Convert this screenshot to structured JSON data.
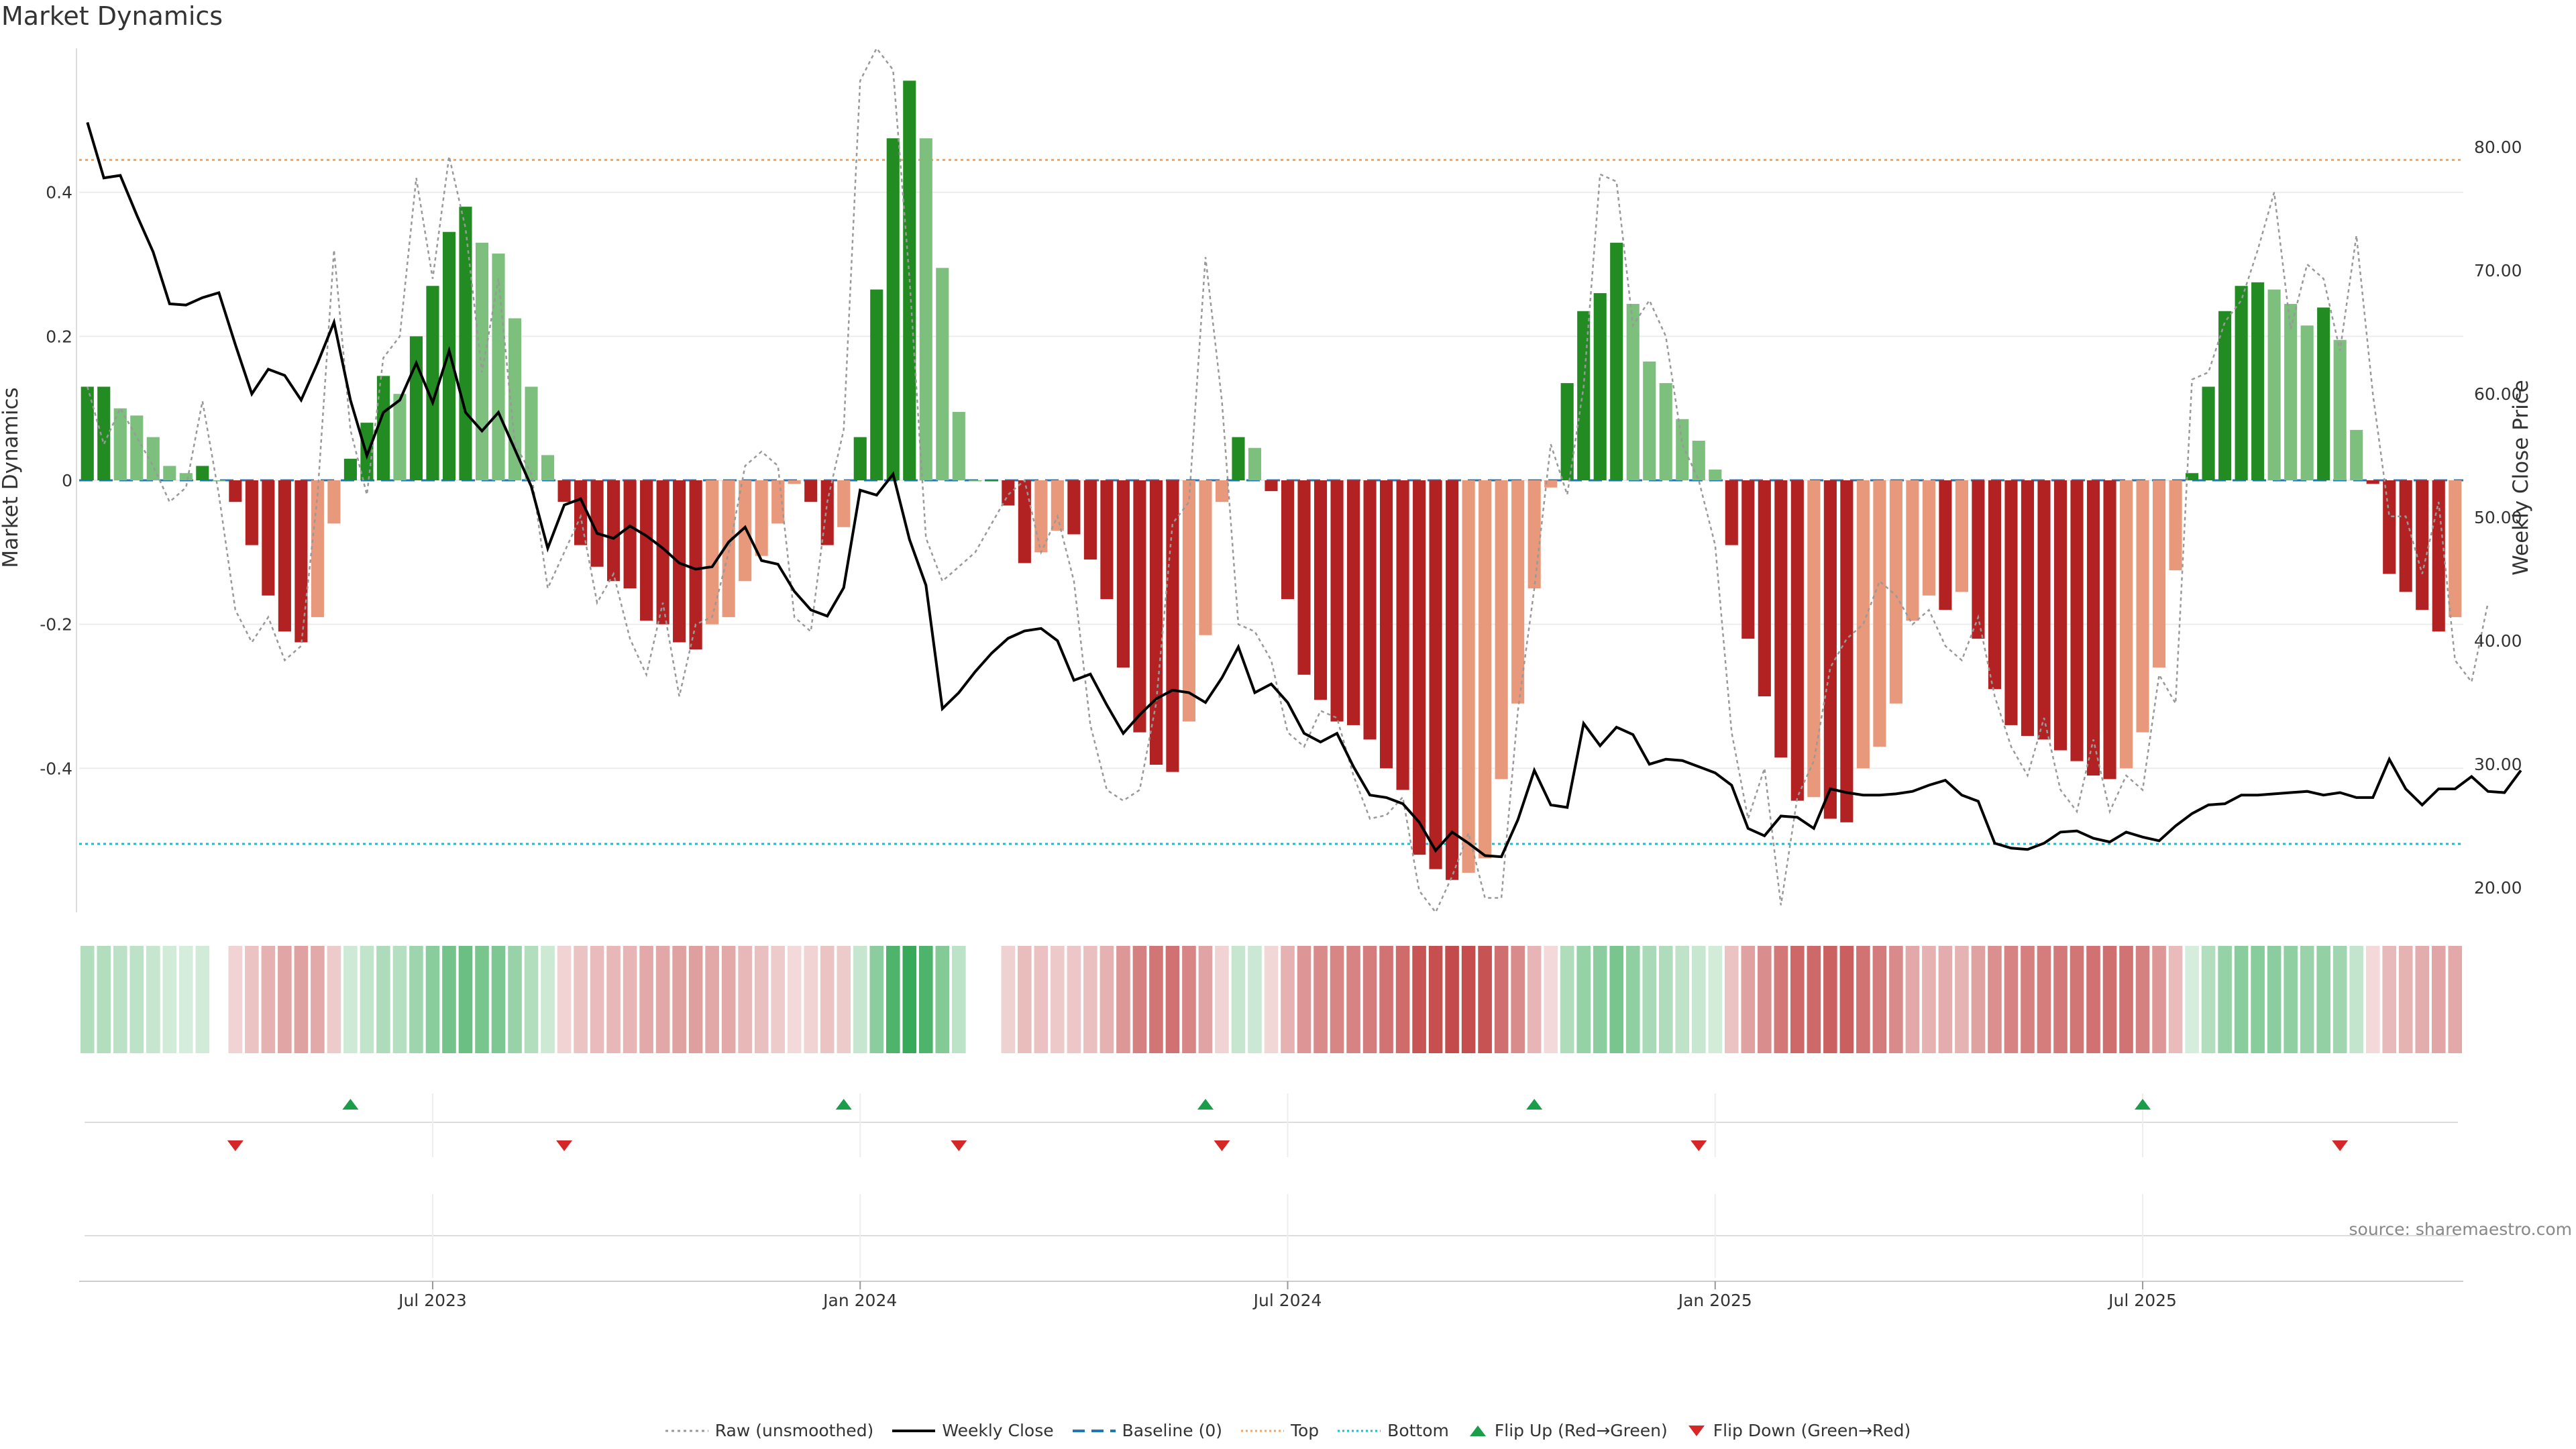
{
  "page": {
    "title": "Market Dynamics",
    "source_note": "source: sharemaestro.com"
  },
  "colors": {
    "strong_green": "#228b22",
    "light_green": "#7dbf7d",
    "strong_red": "#b22222",
    "light_red": "#e8997b",
    "close_line": "#000000",
    "raw_line": "#999999",
    "baseline": "#1f77b4",
    "top": "#f4a460",
    "bottom": "#17becf"
  },
  "chart_data": {
    "type": "bar",
    "title": "Market Dynamics",
    "ylabel": "Market Dynamics",
    "y2label": "Weekly Close Price",
    "ylim": [
      -0.6,
      0.6
    ],
    "y2lim": [
      18.0,
      88.0
    ],
    "yticks": [
      "-0.4",
      "-0.2",
      "0",
      "0.2",
      "0.4"
    ],
    "y2ticks": [
      "20.00",
      "30.00",
      "40.00",
      "50.00",
      "60.00",
      "70.00",
      "80.00"
    ],
    "x_ticks": [
      "Jul 2023",
      "Jan 2024",
      "Jul 2024",
      "Jan 2025",
      "Jul 2025"
    ],
    "x_tick_index": [
      21,
      47,
      73,
      99,
      125
    ],
    "top_level": 0.445,
    "bottom_level": -0.505,
    "baseline": 0,
    "momentum": [
      0.13,
      0.13,
      0.1,
      0.09,
      0.06,
      0.02,
      0.01,
      0.02,
      0.0,
      -0.03,
      -0.09,
      -0.16,
      -0.21,
      -0.225,
      -0.19,
      -0.06,
      0.03,
      0.08,
      0.145,
      0.12,
      0.2,
      0.27,
      0.345,
      0.38,
      0.33,
      0.315,
      0.225,
      0.13,
      0.035,
      -0.03,
      -0.09,
      -0.12,
      -0.14,
      -0.15,
      -0.195,
      -0.2,
      -0.225,
      -0.235,
      -0.2,
      -0.19,
      -0.14,
      -0.105,
      -0.06,
      -0.005,
      -0.03,
      -0.09,
      -0.065,
      0.06,
      0.265,
      0.475,
      0.555,
      0.475,
      0.295,
      0.095,
      0.0,
      0.0,
      -0.035,
      -0.115,
      -0.1,
      -0.07,
      -0.075,
      -0.11,
      -0.165,
      -0.26,
      -0.35,
      -0.395,
      -0.405,
      -0.335,
      -0.215,
      -0.03,
      0.06,
      0.045,
      -0.015,
      -0.165,
      -0.27,
      -0.305,
      -0.335,
      -0.34,
      -0.36,
      -0.4,
      -0.43,
      -0.52,
      -0.54,
      -0.555,
      -0.545,
      -0.525,
      -0.415,
      -0.31,
      -0.15,
      -0.01,
      0.135,
      0.235,
      0.26,
      0.33,
      0.245,
      0.165,
      0.135,
      0.085,
      0.055,
      0.015,
      -0.09,
      -0.22,
      -0.3,
      -0.385,
      -0.445,
      -0.44,
      -0.47,
      -0.475,
      -0.4,
      -0.37,
      -0.31,
      -0.195,
      -0.16,
      -0.18,
      -0.155,
      -0.22,
      -0.29,
      -0.34,
      -0.355,
      -0.36,
      -0.375,
      -0.39,
      -0.41,
      -0.415,
      -0.4,
      -0.35,
      -0.26,
      -0.125,
      0.01,
      0.13,
      0.235,
      0.27,
      0.275,
      0.265,
      0.245,
      0.215,
      0.24,
      0.195,
      0.07,
      -0.005,
      -0.13,
      -0.155,
      -0.18,
      -0.21,
      -0.19
    ],
    "close": [
      82,
      77.5,
      77.7,
      74.5,
      71.5,
      67.3,
      67.2,
      67.8,
      68.2,
      64,
      60,
      62,
      61.5,
      59.5,
      62.5,
      65.8,
      59.5,
      55,
      58.5,
      59.5,
      62.5,
      59.3,
      63.5,
      58.5,
      57,
      58.5,
      55.5,
      52.5,
      47.5,
      51,
      51.5,
      48.7,
      48.3,
      49.3,
      48.5,
      47.5,
      46.3,
      45.8,
      46,
      48,
      49.2,
      46.5,
      46.2,
      44,
      42.5,
      42,
      44.3,
      52.2,
      51.8,
      53.5,
      48.2,
      44.5,
      34.5,
      35.8,
      37.5,
      39,
      40.2,
      40.8,
      41,
      40,
      36.8,
      37.3,
      34.8,
      32.5,
      34,
      35.3,
      36,
      35.8,
      35,
      37,
      39.5,
      35.8,
      36.5,
      35,
      32.5,
      31.8,
      32.5,
      29.8,
      27.5,
      27.3,
      26.8,
      25.3,
      23,
      24.5,
      23.6,
      22.6,
      22.5,
      25.5,
      29.5,
      26.7,
      26.5,
      33.3,
      31.5,
      33,
      32.4,
      30,
      30.4,
      30.3,
      29.8,
      29.3,
      28.3,
      24.8,
      24.2,
      25.8,
      25.7,
      24.8,
      28,
      27.7,
      27.5,
      27.5,
      27.6,
      27.8,
      28.3,
      28.7,
      27.5,
      27,
      23.6,
      23.2,
      23.1,
      23.6,
      24.5,
      24.6,
      24,
      23.7,
      24.5,
      24.1,
      23.8,
      25,
      26,
      26.7,
      26.8,
      27.5,
      27.5,
      27.6,
      27.7,
      27.8,
      27.5,
      27.7,
      27.3,
      27.3,
      30.4,
      28,
      26.7,
      28,
      28,
      29,
      27.8,
      27.7,
      29.5
    ],
    "raw": [
      0.13,
      0.05,
      0.1,
      0.06,
      0.02,
      -0.03,
      -0.01,
      0.11,
      -0.02,
      -0.18,
      -0.225,
      -0.19,
      -0.25,
      -0.23,
      -0.02,
      0.32,
      0.07,
      -0.02,
      0.17,
      0.2,
      0.42,
      0.28,
      0.45,
      0.35,
      0.15,
      0.28,
      0.05,
      0.01,
      -0.15,
      -0.1,
      -0.05,
      -0.17,
      -0.13,
      -0.22,
      -0.27,
      -0.17,
      -0.3,
      -0.2,
      -0.19,
      -0.1,
      0.02,
      0.04,
      0.02,
      -0.19,
      -0.21,
      -0.03,
      0.07,
      0.555,
      0.6,
      0.57,
      0.28,
      -0.08,
      -0.14,
      -0.12,
      -0.1,
      -0.06,
      -0.02,
      0.0,
      -0.1,
      -0.05,
      -0.14,
      -0.34,
      -0.43,
      -0.445,
      -0.43,
      -0.31,
      -0.06,
      -0.03,
      0.31,
      0.11,
      -0.2,
      -0.21,
      -0.25,
      -0.35,
      -0.37,
      -0.32,
      -0.33,
      -0.41,
      -0.47,
      -0.465,
      -0.44,
      -0.57,
      -0.6,
      -0.55,
      -0.49,
      -0.58,
      -0.58,
      -0.32,
      -0.15,
      0.05,
      -0.02,
      0.13,
      0.425,
      0.415,
      0.215,
      0.25,
      0.2,
      0.05,
      0.0,
      -0.09,
      -0.35,
      -0.47,
      -0.4,
      -0.59,
      -0.44,
      -0.39,
      -0.26,
      -0.22,
      -0.2,
      -0.14,
      -0.16,
      -0.2,
      -0.18,
      -0.23,
      -0.25,
      -0.19,
      -0.3,
      -0.37,
      -0.41,
      -0.33,
      -0.43,
      -0.46,
      -0.36,
      -0.46,
      -0.41,
      -0.43,
      -0.27,
      -0.31,
      0.14,
      0.15,
      0.22,
      0.25,
      0.32,
      0.4,
      0.21,
      0.3,
      0.28,
      0.18,
      0.34,
      0.12,
      -0.05,
      -0.05,
      -0.13,
      -0.03,
      -0.25,
      -0.28,
      -0.17
    ],
    "flip_up": [
      16,
      46,
      68,
      88,
      125
    ],
    "flip_down": [
      9,
      29,
      53,
      69,
      98,
      137
    ],
    "series": [
      {
        "name": "Raw (unsmoothed)"
      },
      {
        "name": "Weekly Close"
      },
      {
        "name": "Baseline (0)"
      },
      {
        "name": "Top"
      },
      {
        "name": "Bottom"
      },
      {
        "name": "Flip Up (Red→Green)"
      },
      {
        "name": "Flip Down (Green→Red)"
      }
    ],
    "grid": true,
    "legend_position": "bottom-center"
  },
  "legend": {
    "raw": "Raw (unsmoothed)",
    "close": "Weekly Close",
    "baseline": "Baseline (0)",
    "top": "Top",
    "bottom": "Bottom",
    "flip_up": "Flip Up (Red→Green)",
    "flip_down": "Flip Down (Green→Red)"
  }
}
